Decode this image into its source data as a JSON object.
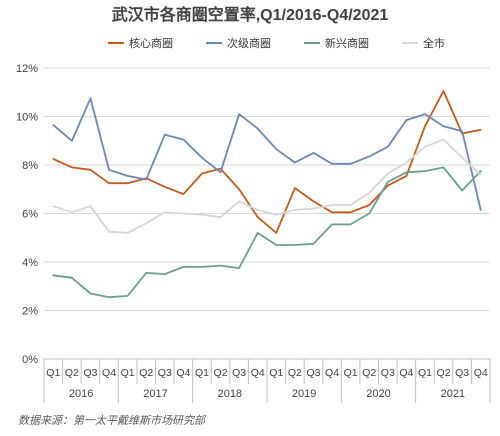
{
  "chart_data": {
    "type": "line",
    "title": "武汉市各商圈空置率,Q1/2016-Q4/2021",
    "source": "数据来源：第一太平戴维斯市场研究部",
    "y_ticks": [
      "0%",
      "2%",
      "4%",
      "6%",
      "8%",
      "10%",
      "12%"
    ],
    "ylim": [
      0,
      12
    ],
    "grid": true,
    "legend_position": "top",
    "quarter_labels": [
      "Q1",
      "Q2",
      "Q3",
      "Q4",
      "Q1",
      "Q2",
      "Q3",
      "Q4",
      "Q1",
      "Q2",
      "Q3",
      "Q4",
      "Q1",
      "Q2",
      "Q3",
      "Q4",
      "Q1",
      "Q2",
      "Q3",
      "Q4",
      "Q1",
      "Q2",
      "Q3",
      "Q4"
    ],
    "years": [
      "2016",
      "2017",
      "2018",
      "2019",
      "2020",
      "2021"
    ],
    "series": [
      {
        "name": "核心商圈",
        "color": "#c55a1c",
        "values": [
          8.25,
          7.9,
          7.8,
          7.25,
          7.25,
          7.45,
          7.1,
          6.8,
          7.65,
          7.85,
          7.0,
          5.85,
          5.2,
          7.05,
          6.5,
          6.05,
          6.05,
          6.35,
          7.15,
          7.55,
          9.6,
          11.05,
          9.3,
          9.45
        ]
      },
      {
        "name": "次级商圈",
        "color": "#6d86b8",
        "values": [
          9.65,
          9.0,
          10.75,
          7.8,
          7.55,
          7.4,
          9.25,
          9.05,
          8.3,
          7.7,
          10.1,
          9.5,
          8.65,
          8.1,
          8.5,
          8.05,
          8.05,
          8.35,
          8.75,
          9.85,
          10.1,
          9.6,
          9.4,
          6.15
        ]
      },
      {
        "name": "新兴商圈",
        "color": "#6ba18c",
        "values": [
          3.45,
          3.35,
          2.7,
          2.55,
          2.6,
          3.55,
          3.5,
          3.8,
          3.8,
          3.85,
          3.75,
          5.2,
          4.7,
          4.7,
          4.75,
          5.55,
          5.55,
          6.0,
          7.3,
          7.7,
          7.75,
          7.9,
          6.95,
          7.75
        ]
      },
      {
        "name": "全市",
        "color": "#d6d6d6",
        "values": [
          6.3,
          6.05,
          6.3,
          5.25,
          5.2,
          5.6,
          6.05,
          6.0,
          5.95,
          5.85,
          6.5,
          6.15,
          5.95,
          6.15,
          6.2,
          6.35,
          6.35,
          6.85,
          7.65,
          8.1,
          8.75,
          9.05,
          8.3,
          7.6
        ]
      }
    ]
  }
}
